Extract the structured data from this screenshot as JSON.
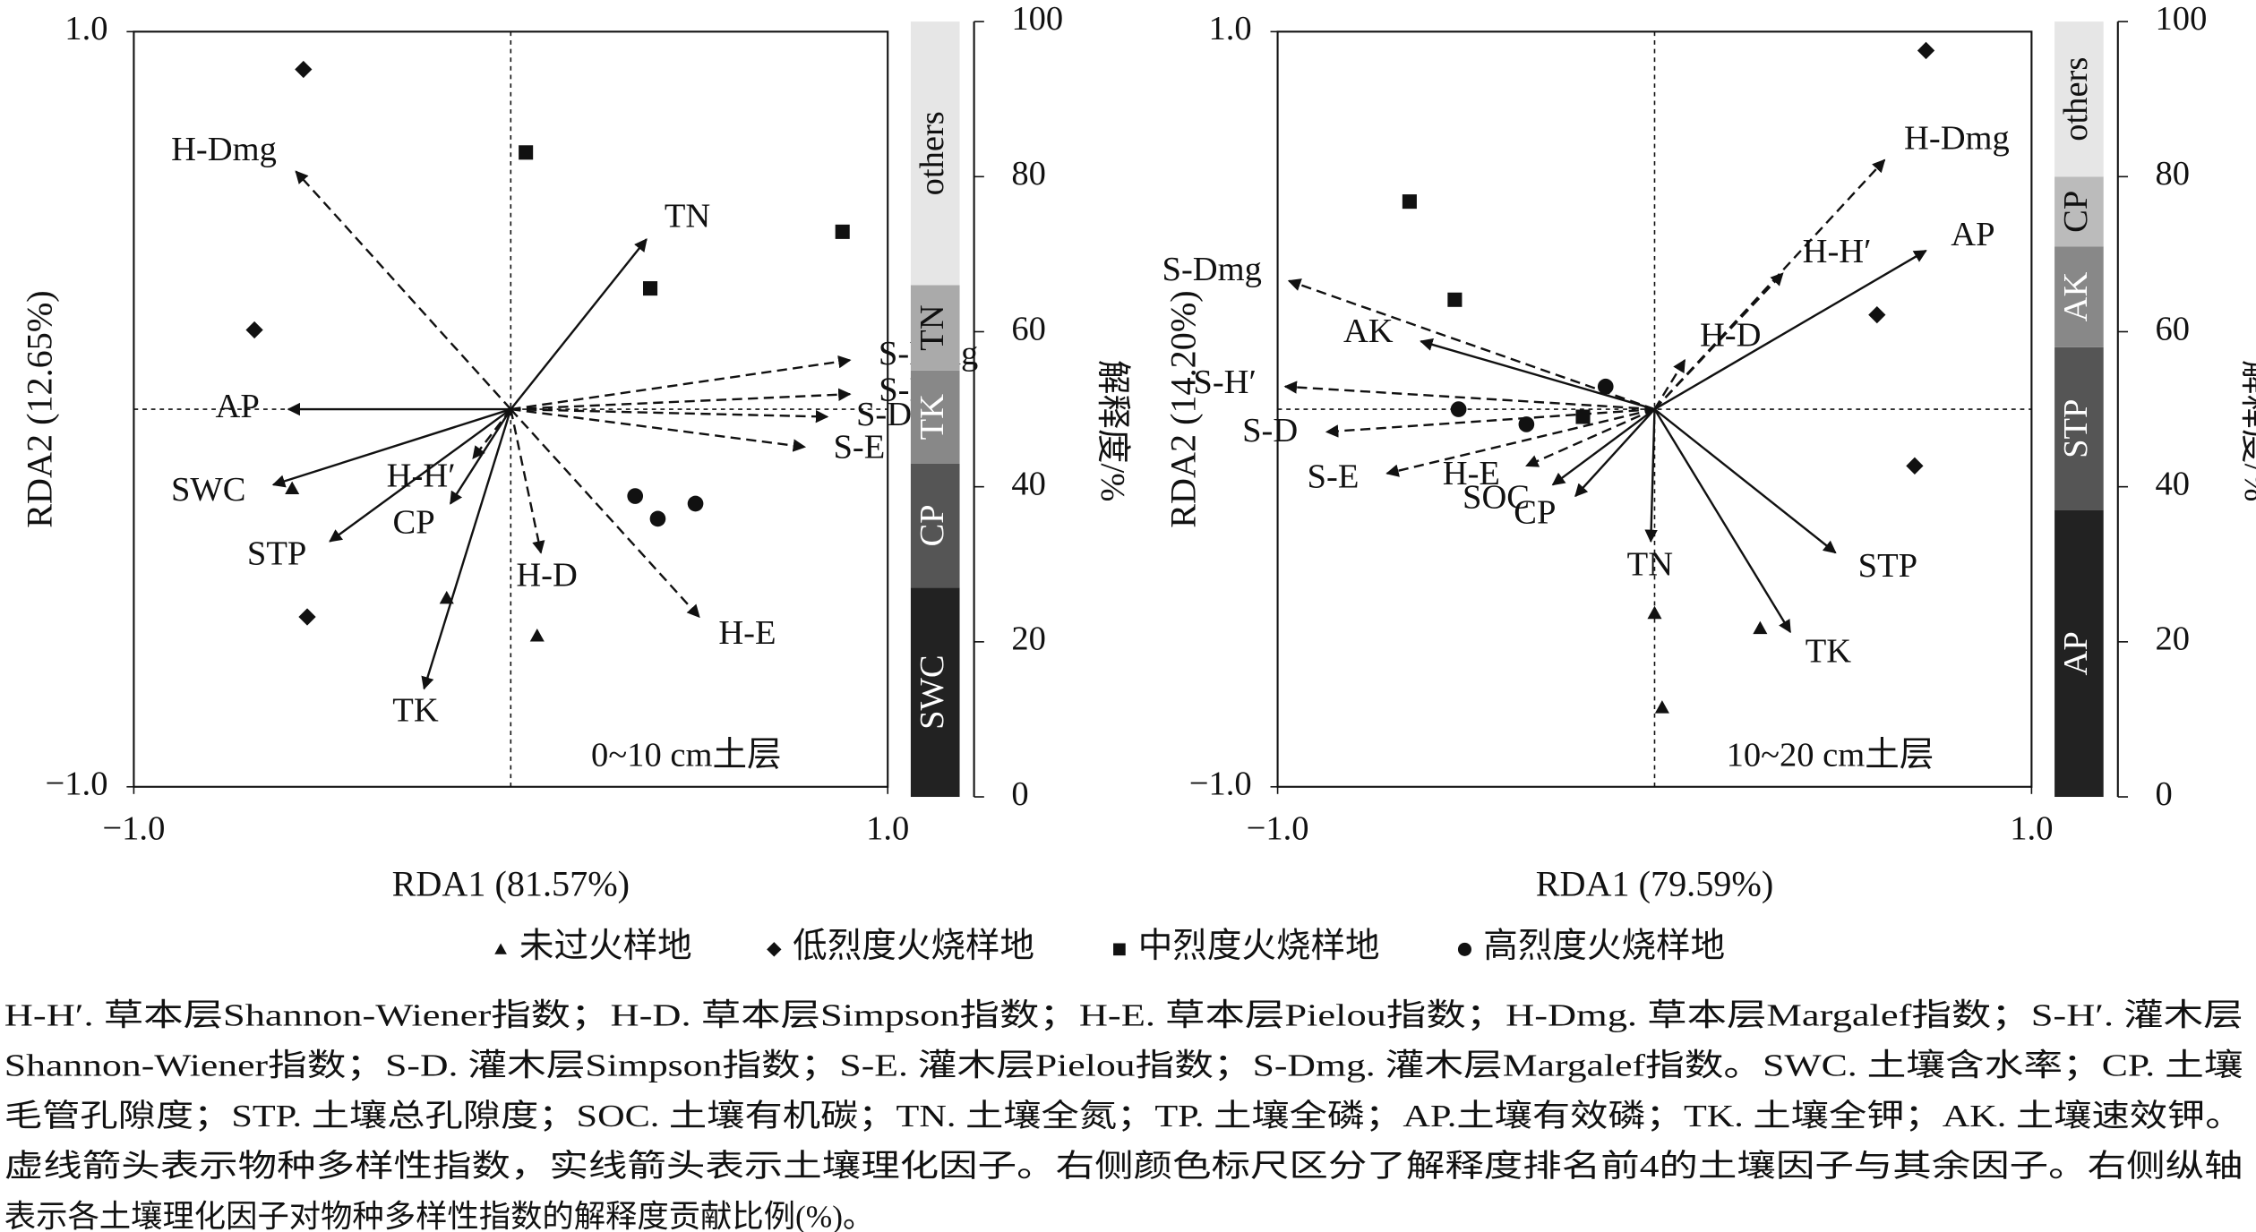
{
  "chart_data": [
    {
      "type": "rda-biplot",
      "x_label": "RDA1 (81.57%)",
      "y_label": "RDA2 (12.65%)",
      "annotation": "0~10 cm土层",
      "xlim": [
        -1,
        1
      ],
      "ylim": [
        -1,
        1
      ],
      "xticks": [
        {
          "value": -1,
          "label": "−1.0"
        },
        {
          "value": 1,
          "label": "1.0"
        }
      ],
      "yticks": [
        {
          "value": -1,
          "label": "−1.0"
        },
        {
          "value": 1,
          "label": "1.0"
        }
      ],
      "arrows": [
        {
          "name": "H-Dmg",
          "x": -0.57,
          "y": 0.63,
          "style": "dashed"
        },
        {
          "name": "TN",
          "x": 0.36,
          "y": 0.45,
          "style": "solid"
        },
        {
          "name": "S-Dmg",
          "x": 0.9,
          "y": 0.13,
          "style": "dashed"
        },
        {
          "name": "S-H′",
          "x": 0.9,
          "y": 0.04,
          "style": "dashed"
        },
        {
          "name": "S-D",
          "x": 0.84,
          "y": -0.02,
          "style": "dashed"
        },
        {
          "name": "S-E",
          "x": 0.78,
          "y": -0.1,
          "style": "dashed"
        },
        {
          "name": "H-E",
          "x": 0.5,
          "y": -0.55,
          "style": "dashed"
        },
        {
          "name": "H-D",
          "x": 0.08,
          "y": -0.38,
          "style": "dashed"
        },
        {
          "name": "H-H′",
          "x": -0.1,
          "y": -0.13,
          "style": "dashed"
        },
        {
          "name": "CP",
          "x": -0.16,
          "y": -0.25,
          "style": "solid"
        },
        {
          "name": "AP",
          "x": -0.59,
          "y": 0,
          "style": "solid"
        },
        {
          "name": "SWC",
          "x": -0.63,
          "y": -0.2,
          "style": "solid"
        },
        {
          "name": "STP",
          "x": -0.48,
          "y": -0.35,
          "style": "solid"
        },
        {
          "name": "TK",
          "x": -0.23,
          "y": -0.74,
          "style": "solid"
        }
      ],
      "series": [
        {
          "x": [
            -0.58,
            -0.17,
            0.07
          ],
          "y": [
            -0.21,
            -0.5,
            -0.6
          ]
        },
        {
          "x": [
            -0.55,
            -0.68,
            -0.54
          ],
          "y": [
            0.9,
            0.21,
            -0.55
          ]
        },
        {
          "x": [
            0.04,
            0.88,
            0.37
          ],
          "y": [
            0.68,
            0.47,
            0.32
          ]
        },
        {
          "x": [
            0.33,
            0.39,
            0.49
          ],
          "y": [
            -0.23,
            -0.29,
            -0.25
          ]
        }
      ],
      "y2_label": "解释度/%",
      "y2lim": [
        0,
        100
      ],
      "y2ticks": [
        0,
        20,
        40,
        60,
        80,
        100
      ],
      "bar": [
        {
          "name": "SWC",
          "value": 27,
          "color": "#222222"
        },
        {
          "name": "CP",
          "value": 16,
          "color": "#555555"
        },
        {
          "name": "TK",
          "value": 12,
          "color": "#888888"
        },
        {
          "name": "TN",
          "value": 11,
          "color": "#aaaaaa"
        },
        {
          "name": "others",
          "value": 34,
          "color": "#e6e6e6"
        }
      ]
    },
    {
      "type": "rda-biplot",
      "x_label": "RDA1 (79.59%)",
      "y_label": "RDA2 (14.20%)",
      "annotation": "10~20 cm土层",
      "xlim": [
        -1,
        1
      ],
      "ylim": [
        -1,
        1
      ],
      "xticks": [
        {
          "value": -1,
          "label": "−1.0"
        },
        {
          "value": 1,
          "label": "1.0"
        }
      ],
      "yticks": [
        {
          "value": -1,
          "label": "−1.0"
        },
        {
          "value": 1,
          "label": "1.0"
        }
      ],
      "arrows": [
        {
          "name": "H-Dmg",
          "x": 0.61,
          "y": 0.66,
          "style": "dashed"
        },
        {
          "name": "AP",
          "x": 0.72,
          "y": 0.42,
          "style": "solid"
        },
        {
          "name": "H-H′",
          "x": 0.34,
          "y": 0.36,
          "style": "dashed"
        },
        {
          "name": "H-D",
          "x": 0.08,
          "y": 0.13,
          "style": "dashed"
        },
        {
          "name": "S-Dmg",
          "x": -0.97,
          "y": 0.34,
          "style": "dashed"
        },
        {
          "name": "AK",
          "x": -0.62,
          "y": 0.18,
          "style": "solid"
        },
        {
          "name": "S-H′",
          "x": -0.98,
          "y": 0.06,
          "style": "dashed"
        },
        {
          "name": "S-D",
          "x": -0.87,
          "y": -0.06,
          "style": "dashed"
        },
        {
          "name": "S-E",
          "x": -0.71,
          "y": -0.17,
          "style": "dashed"
        },
        {
          "name": "H-E",
          "x": -0.34,
          "y": -0.15,
          "style": "dashed"
        },
        {
          "name": "SOC",
          "x": -0.27,
          "y": -0.2,
          "style": "solid"
        },
        {
          "name": "CP",
          "x": -0.21,
          "y": -0.23,
          "style": "solid"
        },
        {
          "name": "TN",
          "x": -0.01,
          "y": -0.35,
          "style": "solid"
        },
        {
          "name": "STP",
          "x": 0.48,
          "y": -0.38,
          "style": "solid"
        },
        {
          "name": "TK",
          "x": 0.36,
          "y": -0.59,
          "style": "solid"
        }
      ],
      "series": [
        {
          "x": [
            0,
            0.02,
            0.28
          ],
          "y": [
            -0.54,
            -0.79,
            -0.58
          ]
        },
        {
          "x": [
            0.72,
            0.59,
            0.69
          ],
          "y": [
            0.95,
            0.25,
            -0.15
          ]
        },
        {
          "x": [
            -0.65,
            -0.53,
            -0.19
          ],
          "y": [
            0.55,
            0.29,
            -0.02
          ]
        },
        {
          "x": [
            -0.13,
            -0.52,
            -0.34
          ],
          "y": [
            0.06,
            0,
            -0.04
          ]
        }
      ],
      "y2_label": "解释度/%",
      "y2lim": [
        0,
        100
      ],
      "y2ticks": [
        0,
        20,
        40,
        60,
        80,
        100
      ],
      "bar": [
        {
          "name": "AP",
          "value": 37,
          "color": "#222222"
        },
        {
          "name": "STP",
          "value": 21,
          "color": "#555555"
        },
        {
          "name": "AK",
          "value": 13,
          "color": "#888888"
        },
        {
          "name": "CP",
          "value": 9,
          "color": "#bbbbbb"
        },
        {
          "name": "others",
          "value": 20,
          "color": "#e6e6e6"
        }
      ]
    }
  ],
  "legend": [
    {
      "name": "未过火样地",
      "marker": "triangle"
    },
    {
      "name": "低烈度火烧样地",
      "marker": "diamond"
    },
    {
      "name": "中烈度火烧样地",
      "marker": "square"
    },
    {
      "name": "高烈度火烧样地",
      "marker": "circle"
    }
  ],
  "caption": [
    "H-H′. 草本层Shannon-Wiener指数；H-D. 草本层Simpson指数；H-E. 草本层Pielou指数；H-Dmg. 草本层Margalef指数；S-H′. 灌木层",
    "Shannon-Wiener指数；S-D. 灌木层Simpson指数；S-E. 灌木层Pielou指数；S-Dmg. 灌木层Margalef指数。SWC. 土壤含水率；CP. 土壤",
    "毛管孔隙度；STP. 土壤总孔隙度；SOC. 土壤有机碳；TN. 土壤全氮；TP. 土壤全磷；AP.土壤有效磷；TK. 土壤全钾；AK. 土壤速效钾。",
    "虚线箭头表示物种多样性指数，实线箭头表示土壤理化因子。右侧颜色标尺区分了解释度排名前4的土壤因子与其余因子。右侧纵轴",
    "表示各土壤理化因子对物种多样性指数的解释度贡献比例(%)。"
  ]
}
